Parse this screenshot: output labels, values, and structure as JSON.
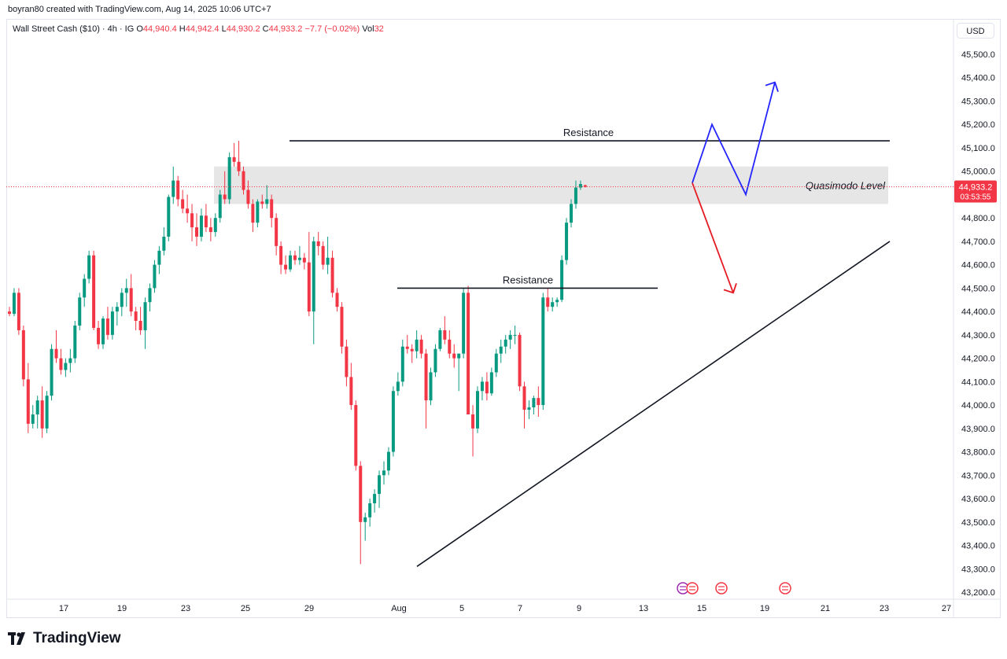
{
  "header": {
    "attribution": "boyran80 created with TradingView.com, Aug 14, 2025 10:06 UTC+7"
  },
  "legend": {
    "symbol": "Wall Street Cash ($10) · 4h · IG",
    "o_label": "O",
    "o_value": "44,940.4",
    "h_label": "H",
    "h_value": "44,942.4",
    "l_label": "L",
    "l_value": "44,930.2",
    "c_label": "C",
    "c_value": "44,933.2",
    "change": "−7.7 (−0.02%)",
    "vol_label": "Vol",
    "vol_value": "32"
  },
  "currency": "USD",
  "brand": {
    "name": "TradingView",
    "icon": "tradingview-logo-icon"
  },
  "colors": {
    "up": "#089981",
    "down": "#f23645",
    "zone": "#e6e6e6",
    "price_line": "#f23645",
    "blue_arrow": "#2424ff",
    "red_arrow": "#e51c23"
  },
  "chart_data": {
    "type": "candlestick",
    "timeframe": "4h",
    "ylim": [
      43180,
      45600
    ],
    "yticks": [
      43200,
      43300,
      43400,
      43500,
      43600,
      43700,
      43800,
      43900,
      44000,
      44100,
      44200,
      44300,
      44400,
      44500,
      44600,
      44700,
      44800,
      44900,
      45000,
      45100,
      45200,
      45300,
      45400,
      45500
    ],
    "ytick_labels": [
      "43,200.0",
      "43,300.0",
      "43,400.0",
      "43,500.0",
      "43,600.0",
      "43,700.0",
      "43,800.0",
      "43,900.0",
      "44,000.0",
      "44,100.0",
      "44,200.0",
      "44,300.0",
      "44,400.0",
      "44,500.0",
      "44,600.0",
      "44,700.0",
      "44,800.0",
      "44,900.0",
      "45,000.0",
      "45,100.0",
      "45,200.0",
      "45,300.0",
      "45,400.0",
      "45,500.0"
    ],
    "xtick_labels": [
      "17",
      "19",
      "23",
      "25",
      "29",
      "Aug",
      "5",
      "7",
      "9",
      "13",
      "15",
      "19",
      "21",
      "23",
      "27"
    ],
    "current_price": {
      "value": 44933.2,
      "label": "44,933.2",
      "countdown": "03:53:55"
    },
    "candles": [
      [
        44400,
        44420,
        44380,
        44390
      ],
      [
        44390,
        44500,
        44380,
        44480
      ],
      [
        44480,
        44500,
        44300,
        44320
      ],
      [
        44320,
        44340,
        44080,
        44110
      ],
      [
        44110,
        44180,
        43880,
        43920
      ],
      [
        43920,
        44000,
        43900,
        43960
      ],
      [
        43960,
        44040,
        43900,
        44020
      ],
      [
        44020,
        44080,
        43860,
        43900
      ],
      [
        43900,
        44060,
        43880,
        44040
      ],
      [
        44040,
        44260,
        44020,
        44240
      ],
      [
        44240,
        44320,
        44180,
        44200
      ],
      [
        44200,
        44240,
        44130,
        44150
      ],
      [
        44150,
        44200,
        44120,
        44180
      ],
      [
        44180,
        44240,
        44140,
        44200
      ],
      [
        44200,
        44360,
        44180,
        44340
      ],
      [
        44340,
        44480,
        44320,
        44460
      ],
      [
        44460,
        44560,
        44420,
        44540
      ],
      [
        44540,
        44660,
        44520,
        44640
      ],
      [
        44640,
        44660,
        44320,
        44330
      ],
      [
        44330,
        44360,
        44240,
        44260
      ],
      [
        44260,
        44380,
        44240,
        44370
      ],
      [
        44370,
        44420,
        44280,
        44300
      ],
      [
        44300,
        44420,
        44280,
        44400
      ],
      [
        44400,
        44440,
        44340,
        44420
      ],
      [
        44420,
        44500,
        44380,
        44480
      ],
      [
        44480,
        44540,
        44420,
        44500
      ],
      [
        44500,
        44560,
        44380,
        44400
      ],
      [
        44400,
        44420,
        44320,
        44360
      ],
      [
        44360,
        44420,
        44300,
        44320
      ],
      [
        44320,
        44460,
        44240,
        44440
      ],
      [
        44440,
        44520,
        44400,
        44500
      ],
      [
        44500,
        44620,
        44480,
        44600
      ],
      [
        44600,
        44680,
        44560,
        44660
      ],
      [
        44660,
        44760,
        44640,
        44720
      ],
      [
        44720,
        44900,
        44700,
        44890
      ],
      [
        44890,
        45020,
        44860,
        44960
      ],
      [
        44960,
        44980,
        44850,
        44880
      ],
      [
        44880,
        44920,
        44820,
        44840
      ],
      [
        44840,
        44900,
        44780,
        44820
      ],
      [
        44820,
        44860,
        44700,
        44760
      ],
      [
        44760,
        44820,
        44680,
        44720
      ],
      [
        44720,
        44840,
        44700,
        44810
      ],
      [
        44810,
        44860,
        44740,
        44760
      ],
      [
        44760,
        44800,
        44700,
        44740
      ],
      [
        44740,
        44820,
        44720,
        44800
      ],
      [
        44800,
        44920,
        44780,
        44900
      ],
      [
        44900,
        45000,
        44860,
        44880
      ],
      [
        44880,
        45080,
        44860,
        45060
      ],
      [
        45060,
        45120,
        45020,
        45040
      ],
      [
        45040,
        45130,
        44980,
        45000
      ],
      [
        45000,
        45020,
        44900,
        44920
      ],
      [
        44920,
        44960,
        44840,
        44860
      ],
      [
        44860,
        44880,
        44740,
        44780
      ],
      [
        44780,
        44880,
        44760,
        44870
      ],
      [
        44870,
        44900,
        44840,
        44860
      ],
      [
        44860,
        44940,
        44840,
        44880
      ],
      [
        44880,
        44900,
        44760,
        44800
      ],
      [
        44800,
        44820,
        44640,
        44680
      ],
      [
        44680,
        44700,
        44560,
        44600
      ],
      [
        44600,
        44640,
        44560,
        44580
      ],
      [
        44580,
        44660,
        44570,
        44640
      ],
      [
        44640,
        44660,
        44600,
        44620
      ],
      [
        44620,
        44680,
        44600,
        44630
      ],
      [
        44630,
        44650,
        44580,
        44610
      ],
      [
        44610,
        44740,
        44380,
        44400
      ],
      [
        44400,
        44720,
        44260,
        44700
      ],
      [
        44700,
        44740,
        44640,
        44680
      ],
      [
        44680,
        44700,
        44580,
        44600
      ],
      [
        44600,
        44720,
        44560,
        44630
      ],
      [
        44630,
        44660,
        44460,
        44480
      ],
      [
        44480,
        44500,
        44400,
        44420
      ],
      [
        44420,
        44440,
        44220,
        44250
      ],
      [
        44250,
        44280,
        44080,
        44120
      ],
      [
        44120,
        44180,
        43980,
        44000
      ],
      [
        44000,
        44020,
        43720,
        43740
      ],
      [
        43740,
        43760,
        43320,
        43500
      ],
      [
        43500,
        43540,
        43420,
        43520
      ],
      [
        43520,
        43600,
        43480,
        43580
      ],
      [
        43580,
        43640,
        43540,
        43620
      ],
      [
        43620,
        43720,
        43560,
        43700
      ],
      [
        43700,
        43760,
        43660,
        43720
      ],
      [
        43720,
        43820,
        43700,
        43800
      ],
      [
        43800,
        44080,
        43780,
        44060
      ],
      [
        44060,
        44140,
        44040,
        44100
      ],
      [
        44100,
        44280,
        44080,
        44250
      ],
      [
        44250,
        44300,
        44220,
        44240
      ],
      [
        44240,
        44260,
        44180,
        44230
      ],
      [
        44230,
        44320,
        44200,
        44280
      ],
      [
        44280,
        44300,
        44200,
        44220
      ],
      [
        44220,
        44240,
        43900,
        44020
      ],
      [
        44020,
        44160,
        44000,
        44140
      ],
      [
        44140,
        44260,
        44120,
        44240
      ],
      [
        44240,
        44330,
        44230,
        44320
      ],
      [
        44320,
        44380,
        44260,
        44280
      ],
      [
        44280,
        44320,
        44200,
        44220
      ],
      [
        44220,
        44260,
        44160,
        44200
      ],
      [
        44200,
        44220,
        44060,
        44220
      ],
      [
        44220,
        44500,
        44200,
        44480
      ],
      [
        44480,
        44510,
        43980,
        43960
      ],
      [
        43960,
        44000,
        43780,
        43900
      ],
      [
        43900,
        44080,
        43880,
        44060
      ],
      [
        44060,
        44120,
        44020,
        44100
      ],
      [
        44100,
        44140,
        44020,
        44050
      ],
      [
        44050,
        44160,
        44040,
        44140
      ],
      [
        44140,
        44240,
        44120,
        44220
      ],
      [
        44220,
        44280,
        44180,
        44250
      ],
      [
        44250,
        44300,
        44220,
        44280
      ],
      [
        44280,
        44320,
        44240,
        44300
      ],
      [
        44300,
        44340,
        44260,
        44300
      ],
      [
        44300,
        44310,
        44060,
        44080
      ],
      [
        44080,
        44100,
        43900,
        43980
      ],
      [
        43980,
        44020,
        43940,
        43990
      ],
      [
        43990,
        44040,
        43960,
        44030
      ],
      [
        44030,
        44080,
        43950,
        44000
      ],
      [
        44000,
        44480,
        43980,
        44460
      ],
      [
        44460,
        44500,
        44400,
        44420
      ],
      [
        44420,
        44460,
        44400,
        44440
      ],
      [
        44440,
        44460,
        44420,
        44450
      ],
      [
        44450,
        44640,
        44440,
        44620
      ],
      [
        44620,
        44800,
        44600,
        44780
      ],
      [
        44780,
        44880,
        44760,
        44860
      ],
      [
        44860,
        44960,
        44840,
        44930
      ],
      [
        44930,
        44960,
        44920,
        44945
      ],
      [
        44940,
        44942,
        44930,
        44933
      ]
    ]
  },
  "annotations": {
    "resistance_upper": {
      "label": "Resistance",
      "price": 45130
    },
    "resistance_lower": {
      "label": "Resistance",
      "price": 44500
    },
    "zone": {
      "label": "Quasimodo Level",
      "top": 45020,
      "bottom": 44860
    },
    "trendline": {
      "from_price": 43310,
      "to_price": 44700
    },
    "bull_path": [
      44950,
      45200,
      44900,
      45380
    ],
    "bear_path": [
      44950,
      44480
    ]
  }
}
